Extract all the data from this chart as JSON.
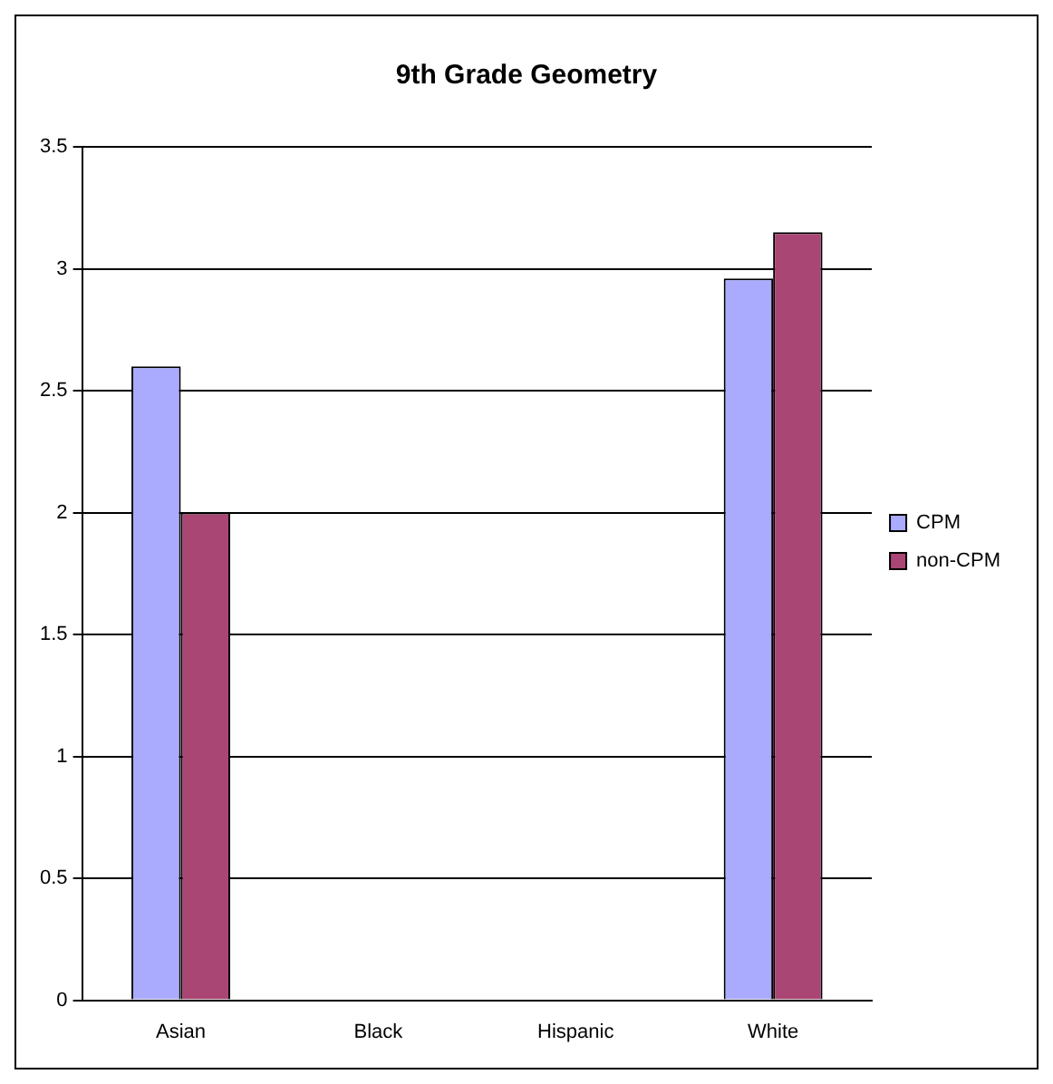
{
  "chart_data": {
    "type": "bar",
    "title": "9th Grade Geometry",
    "categories": [
      "Asian",
      "Black",
      "Hispanic",
      "White"
    ],
    "series": [
      {
        "name": "CPM",
        "color": "#aaaaff",
        "values": [
          2.6,
          null,
          null,
          2.96
        ]
      },
      {
        "name": "non-CPM",
        "color": "#a94673",
        "values": [
          2.0,
          null,
          null,
          3.15
        ]
      }
    ],
    "ylim": [
      0,
      3.5
    ],
    "yticks": [
      0,
      0.5,
      1,
      1.5,
      2,
      2.5,
      3,
      3.5
    ],
    "grid": "y",
    "legend": "right"
  }
}
